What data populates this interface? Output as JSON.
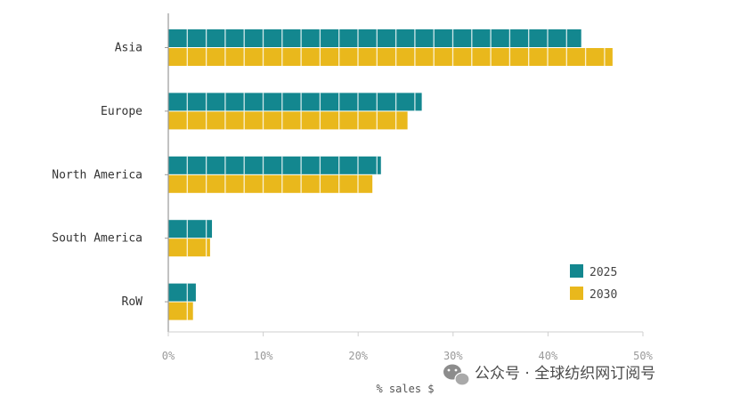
{
  "chart_data": {
    "type": "bar",
    "orientation": "horizontal",
    "categories": [
      "Asia",
      "Europe",
      "North America",
      "South America",
      "RoW"
    ],
    "series": [
      {
        "name": "2025",
        "values": [
          43.5,
          26.7,
          22.4,
          4.6,
          2.9
        ],
        "color": "#13878f"
      },
      {
        "name": "2030",
        "values": [
          46.8,
          25.2,
          21.5,
          4.4,
          2.6
        ],
        "color": "#e9b81c"
      }
    ],
    "xlabel": "% sales $",
    "xlim": [
      0,
      50
    ],
    "xticks": [
      "0%",
      "10%",
      "20%",
      "30%",
      "40%",
      "50%"
    ],
    "grid": false,
    "legend_position": "bottom-right"
  },
  "watermark": {
    "text": "公众号 · 全球纺织网订阅号",
    "icon": "wechat-icon"
  }
}
